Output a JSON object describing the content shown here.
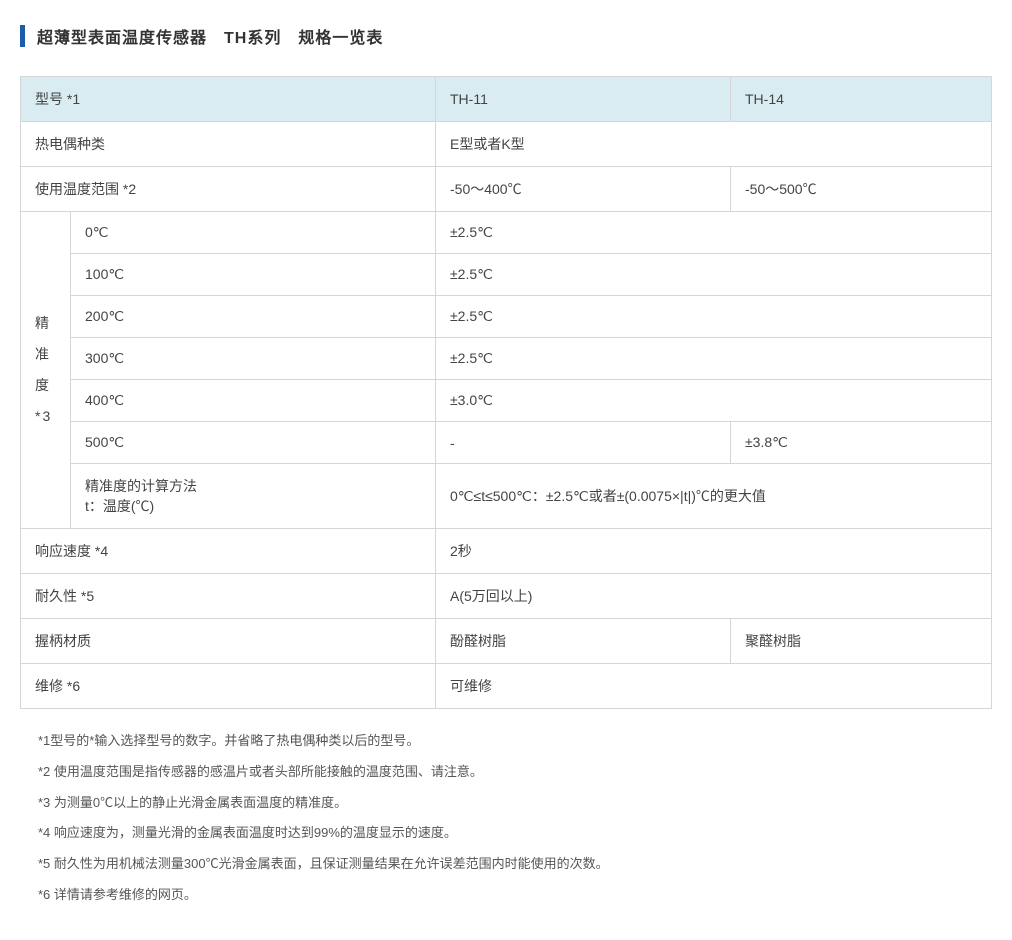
{
  "title": "超薄型表面温度传感器　TH系列　规格一览表",
  "header": {
    "model_label": "型号 *1",
    "model_a": "TH-11",
    "model_b": "TH-14"
  },
  "rows": {
    "thermocouple_label": "热电偶种类",
    "thermocouple_value": "E型或者K型",
    "temp_range_label": "使用温度范围 *2",
    "temp_range_a": "-50～400℃",
    "temp_range_b": "-50～500℃",
    "accuracy_label": "精\n准\n度\n*3",
    "acc_0_label": "0℃",
    "acc_0_val": "±2.5℃",
    "acc_100_label": "100℃",
    "acc_100_val": "±2.5℃",
    "acc_200_label": "200℃",
    "acc_200_val": "±2.5℃",
    "acc_300_label": "300℃",
    "acc_300_val": "±2.5℃",
    "acc_400_label": "400℃",
    "acc_400_val": "±3.0℃",
    "acc_500_label": "500℃",
    "acc_500_val_a": "-",
    "acc_500_val_b": "±3.8℃",
    "acc_calc_label": "精准度的计算方法\nt：温度(℃)",
    "acc_calc_val": "0℃≤t≤500℃：±2.5℃或者±(0.0075×|t|)℃的更大值",
    "response_label": "响应速度 *4",
    "response_val": "2秒",
    "durability_label": "耐久性 *5",
    "durability_val": "A(5万回以上)",
    "handle_label": "握柄材质",
    "handle_a": "酚醛树脂",
    "handle_b": "聚醛树脂",
    "maint_label": "维修 *6",
    "maint_val": "可维修"
  },
  "notes": {
    "n1": "*1型号的*输入选择型号的数字。并省略了热电偶种类以后的型号。",
    "n2": "*2 使用温度范围是指传感器的感温片或者头部所能接触的温度范围、请注意。",
    "n3": "*3 为测量0℃以上的静止光滑金属表面温度的精准度。",
    "n4": "*4 响应速度为，测量光滑的金属表面温度时达到99%的温度显示的速度。",
    "n5": "*5 耐久性为用机械法测量300℃光滑金属表面，且保证测量结果在允许误差范围内时能使用的次数。",
    "n6": "*6 详情请参考维修的网页。"
  },
  "colors": {
    "accent": "#1b5da8",
    "header_bg": "#d9ecf2",
    "border": "#d6d6d6",
    "text": "#444444",
    "note_text": "#555555",
    "background": "#ffffff"
  }
}
